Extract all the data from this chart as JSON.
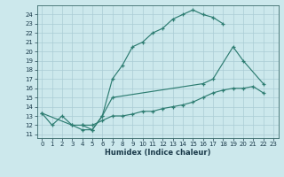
{
  "xlabel": "Humidex (Indice chaleur)",
  "background_color": "#cce8ec",
  "grid_color": "#aaccd4",
  "line_color": "#2e7d72",
  "xlim": [
    -0.5,
    23.5
  ],
  "ylim": [
    10.6,
    25.0
  ],
  "yticks": [
    11,
    12,
    13,
    14,
    15,
    16,
    17,
    18,
    19,
    20,
    21,
    22,
    23,
    24
  ],
  "xticks": [
    0,
    1,
    2,
    3,
    4,
    5,
    6,
    7,
    8,
    9,
    10,
    11,
    12,
    13,
    14,
    15,
    16,
    17,
    18,
    19,
    20,
    21,
    22,
    23
  ],
  "line1": [
    [
      0,
      13.3
    ],
    [
      1,
      12.0
    ],
    [
      2,
      13.0
    ],
    [
      3,
      12.0
    ],
    [
      4,
      11.5
    ],
    [
      5,
      11.5
    ],
    [
      6,
      13.0
    ],
    [
      7,
      17.0
    ],
    [
      8,
      18.5
    ],
    [
      9,
      20.5
    ],
    [
      10,
      21.0
    ],
    [
      11,
      22.0
    ],
    [
      12,
      22.5
    ],
    [
      13,
      23.5
    ],
    [
      14,
      24.0
    ],
    [
      15,
      24.5
    ],
    [
      16,
      24.0
    ],
    [
      17,
      23.7
    ],
    [
      18,
      23.0
    ]
  ],
  "line2": [
    [
      0,
      13.3
    ],
    [
      3,
      12.0
    ],
    [
      4,
      12.0
    ],
    [
      5,
      11.5
    ],
    [
      6,
      13.0
    ],
    [
      7,
      15.0
    ],
    [
      16,
      16.5
    ],
    [
      17,
      17.0
    ],
    [
      19,
      20.5
    ],
    [
      20,
      19.0
    ],
    [
      22,
      16.5
    ]
  ],
  "line3": [
    [
      4,
      12.0
    ],
    [
      5,
      12.0
    ],
    [
      6,
      12.5
    ],
    [
      7,
      13.0
    ],
    [
      8,
      13.0
    ],
    [
      9,
      13.2
    ],
    [
      10,
      13.5
    ],
    [
      11,
      13.5
    ],
    [
      12,
      13.8
    ],
    [
      13,
      14.0
    ],
    [
      14,
      14.2
    ],
    [
      15,
      14.5
    ],
    [
      16,
      15.0
    ],
    [
      17,
      15.5
    ],
    [
      18,
      15.8
    ],
    [
      19,
      16.0
    ],
    [
      20,
      16.0
    ],
    [
      21,
      16.2
    ],
    [
      22,
      15.5
    ]
  ]
}
